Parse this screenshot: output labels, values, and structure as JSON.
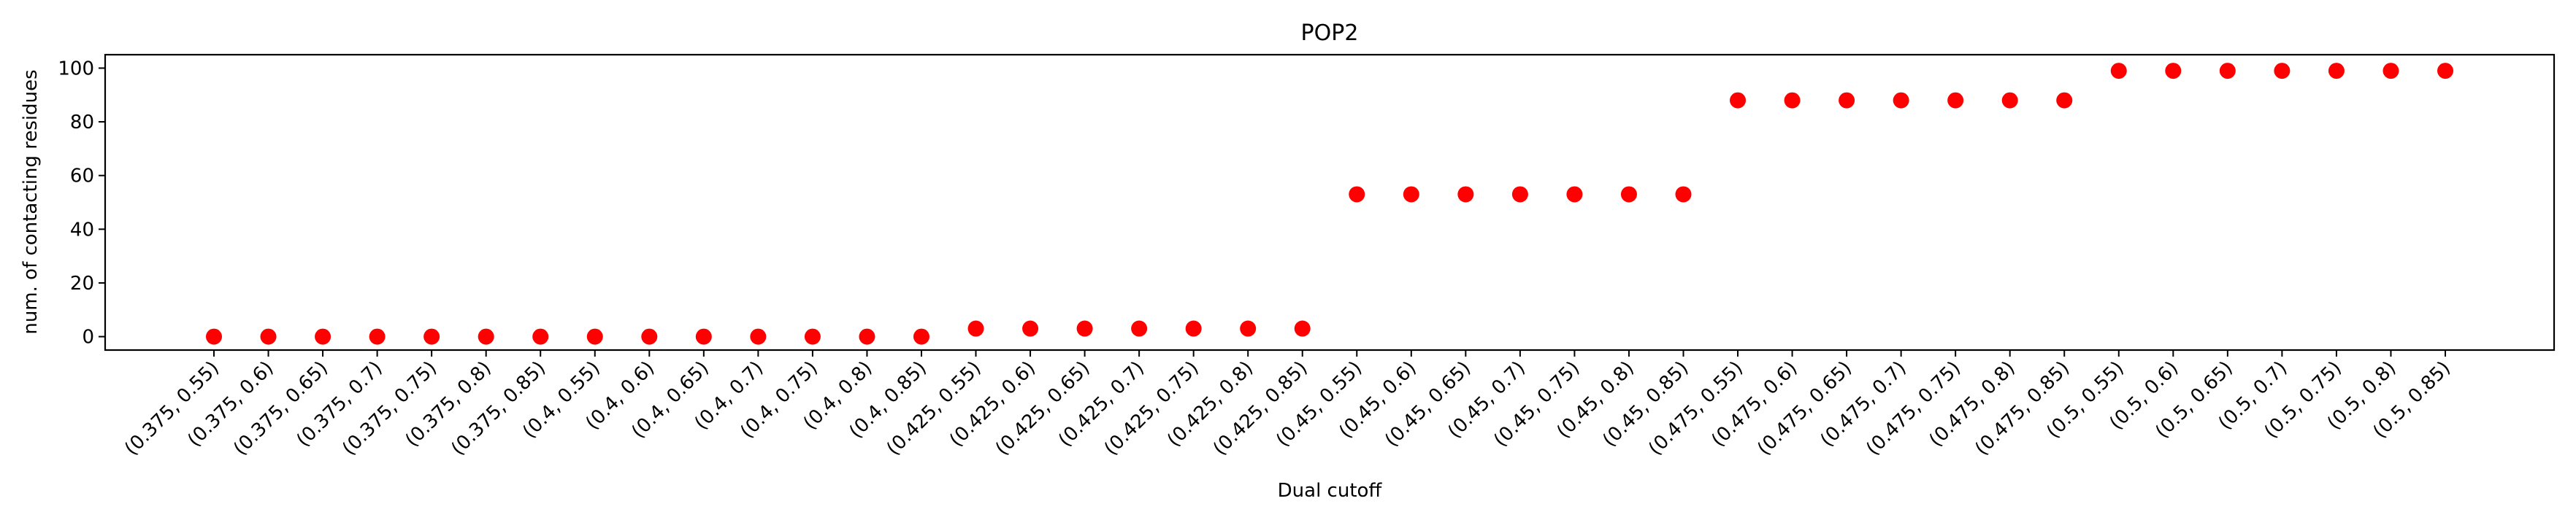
{
  "chart_data": {
    "type": "scatter",
    "title": "POP2",
    "xlabel": "Dual cutoff",
    "ylabel": "num. of contacting residues",
    "ylim": [
      -5,
      105
    ],
    "yticks": [
      0,
      20,
      40,
      60,
      80,
      100
    ],
    "grid": false,
    "marker_color": "#ff0000",
    "categories": [
      "(0.375, 0.55)",
      "(0.375, 0.6)",
      "(0.375, 0.65)",
      "(0.375, 0.7)",
      "(0.375, 0.75)",
      "(0.375, 0.8)",
      "(0.375, 0.85)",
      "(0.4, 0.55)",
      "(0.4, 0.6)",
      "(0.4, 0.65)",
      "(0.4, 0.7)",
      "(0.4, 0.75)",
      "(0.4, 0.8)",
      "(0.4, 0.85)",
      "(0.425, 0.55)",
      "(0.425, 0.6)",
      "(0.425, 0.65)",
      "(0.425, 0.7)",
      "(0.425, 0.75)",
      "(0.425, 0.8)",
      "(0.425, 0.85)",
      "(0.45, 0.55)",
      "(0.45, 0.6)",
      "(0.45, 0.65)",
      "(0.45, 0.7)",
      "(0.45, 0.75)",
      "(0.45, 0.8)",
      "(0.45, 0.85)",
      "(0.475, 0.55)",
      "(0.475, 0.6)",
      "(0.475, 0.65)",
      "(0.475, 0.7)",
      "(0.475, 0.75)",
      "(0.475, 0.8)",
      "(0.475, 0.85)",
      "(0.5, 0.55)",
      "(0.5, 0.6)",
      "(0.5, 0.65)",
      "(0.5, 0.7)",
      "(0.5, 0.75)",
      "(0.5, 0.8)",
      "(0.5, 0.85)"
    ],
    "values": [
      0,
      0,
      0,
      0,
      0,
      0,
      0,
      0,
      0,
      0,
      0,
      0,
      0,
      0,
      3,
      3,
      3,
      3,
      3,
      3,
      3,
      53,
      53,
      53,
      53,
      53,
      53,
      53,
      88,
      88,
      88,
      88,
      88,
      88,
      88,
      99,
      99,
      99,
      99,
      99,
      99,
      99
    ]
  }
}
